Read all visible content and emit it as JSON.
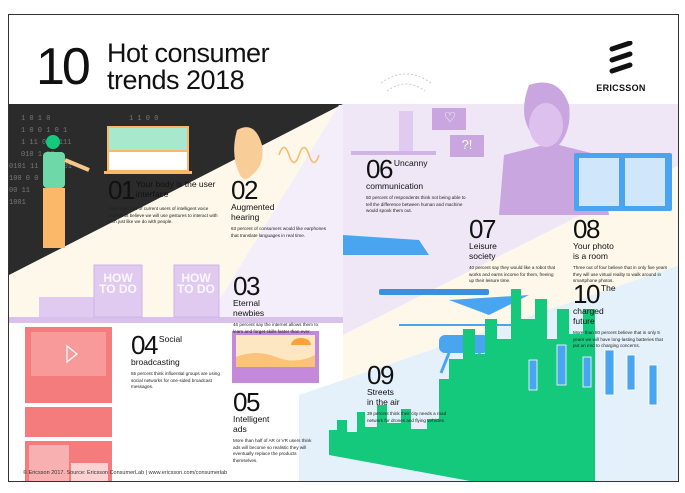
{
  "header": {
    "big_number": "10",
    "title_line1": "Hot consumer",
    "title_line2": "trends 2018"
  },
  "brand": {
    "name": "ERICSSON"
  },
  "trends": [
    {
      "number": "01",
      "title": "Your body is the user interface",
      "description": "More than half of current users of intelligent voice assistants believe we will use gestures to interact with tech just like we do with people."
    },
    {
      "number": "02",
      "title": "Augmented hearing",
      "description": "63 percent of consumers would like earphones that translate languages in real time."
    },
    {
      "number": "03",
      "title": "Eternal newbies",
      "description": "46 percent say the internet allows them to learn and forget skills faster than ever."
    },
    {
      "number": "04",
      "title": "Social broadcasting",
      "description": "55 percent think influential groups are using social networks for one-sided broadcast messages."
    },
    {
      "number": "05",
      "title": "Intelligent ads",
      "description": "More than half of AR or VR users think ads will become so realistic they will eventually replace the products themselves."
    },
    {
      "number": "06",
      "title": "Uncanny communication",
      "description": "50 percent of respondents think not being able to tell the difference between human and machine would spook them out."
    },
    {
      "number": "07",
      "title": "Leisure society",
      "description": "40 percent say they would like a robot that works and earns income for them, freeing up their leisure time."
    },
    {
      "number": "08",
      "title": "Your photo is a room",
      "description": "Three out of four believe that in only five years they will use virtual reality to walk around in smartphone photos."
    },
    {
      "number": "09",
      "title": "Streets in the air",
      "description": "39 percent think their city needs a road network for drones and flying vehicles."
    },
    {
      "number": "10",
      "title": "The charged future",
      "description": "More than 80 percent believe that in only 5 years we will have long-lasting batteries that put an end to charging concerns."
    }
  ],
  "illustrations": {
    "book_label": "HOW TO DO",
    "chat_symbol": "?!"
  },
  "footer": {
    "text": "© Ericsson 2017. Source: Ericsson ConsumerLab  |  www.ericsson.com/consumerlab"
  },
  "colors": {
    "dark": "#2b2b2b",
    "cream": "#fdf8ea",
    "lavender": "#efe6f6",
    "purple": "#c9a6e0",
    "light_blue": "#e4f1fb",
    "blue": "#4aa5f0",
    "green": "#14c97c",
    "coral": "#f47c7c",
    "orange": "#fbb868",
    "mint": "#a8e8cd"
  }
}
